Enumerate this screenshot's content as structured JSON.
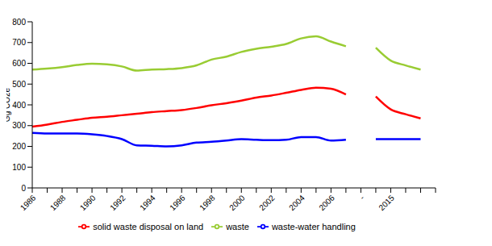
{
  "chart_data": {
    "type": "line",
    "y_label": "Gg CO2e",
    "categories": [
      "1986",
      null,
      "1988",
      null,
      "1990",
      null,
      "1992",
      null,
      "1994",
      null,
      "1996",
      null,
      "1998",
      null,
      "2000",
      null,
      "2002",
      null,
      "2004",
      null,
      "2006",
      null,
      "-",
      null,
      "2015",
      null,
      null,
      null
    ],
    "series": [
      {
        "name": "waste-water handling",
        "color": "#0000ff",
        "values": [
          265,
          262,
          262,
          262,
          258,
          250,
          235,
          205,
          203,
          200,
          205,
          218,
          222,
          228,
          235,
          232,
          230,
          232,
          245,
          245,
          228,
          232,
          null,
          235,
          235,
          235,
          235,
          null
        ]
      },
      {
        "name": "solid waste disposal on land",
        "color": "#ff0000",
        "values": [
          295,
          305,
          318,
          328,
          338,
          343,
          350,
          357,
          365,
          370,
          375,
          385,
          398,
          408,
          420,
          435,
          445,
          458,
          472,
          483,
          478,
          450,
          null,
          440,
          378,
          355,
          335,
          null
        ]
      },
      {
        "name": "waste",
        "color": "#99cc33",
        "values": [
          570,
          575,
          582,
          592,
          598,
          595,
          585,
          565,
          570,
          572,
          577,
          590,
          618,
          632,
          655,
          670,
          680,
          693,
          720,
          730,
          705,
          682,
          null,
          675,
          613,
          590,
          570,
          null
        ]
      }
    ],
    "ylim": [
      0,
      800
    ],
    "yticks": [
      0,
      100,
      200,
      300,
      400,
      500,
      600,
      700,
      800
    ],
    "grid": false,
    "legend": "bottom"
  }
}
